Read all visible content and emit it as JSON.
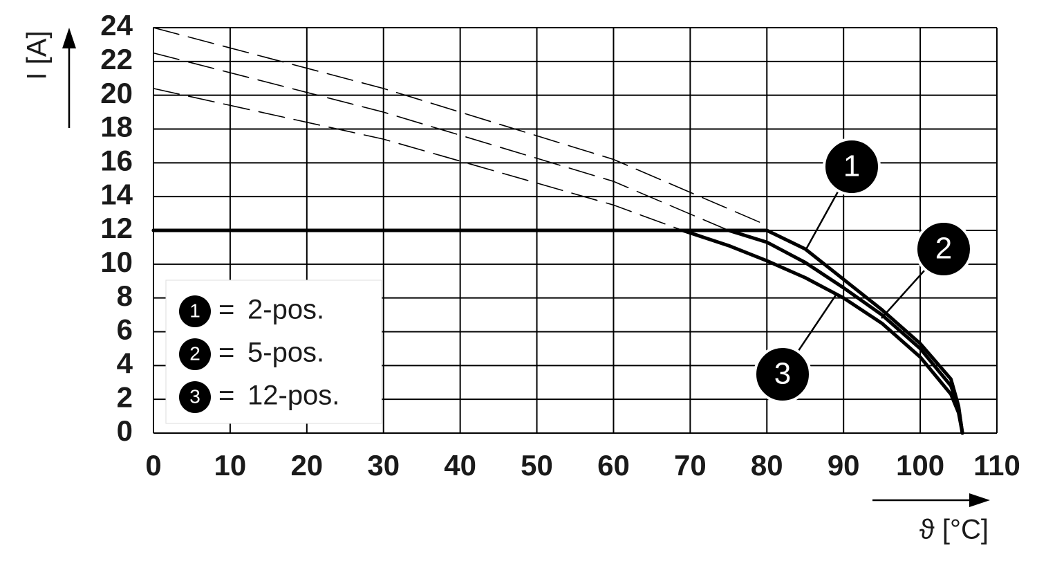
{
  "chart_data": {
    "type": "line",
    "y_label": "I [A]",
    "x_label": "ϑ [°C]",
    "xlim": [
      0,
      110
    ],
    "xticks": [
      0,
      10,
      20,
      30,
      40,
      50,
      60,
      70,
      80,
      90,
      100,
      110
    ],
    "ylim": [
      0,
      24
    ],
    "yticks": [
      0,
      2,
      4,
      6,
      8,
      10,
      12,
      14,
      16,
      18,
      20,
      22,
      24
    ],
    "grid": true,
    "legend_separator": "=",
    "series": [
      {
        "name": "2-pos.",
        "marker": "1",
        "color": "#000000",
        "style": "solid",
        "x": [
          0,
          80,
          85,
          90,
          95,
          100,
          104,
          105,
          105.5
        ],
        "values": [
          12,
          12,
          10.9,
          9.1,
          7.3,
          5.3,
          3.2,
          1.6,
          0
        ]
      },
      {
        "name": "5-pos.",
        "marker": "2",
        "color": "#000000",
        "style": "solid",
        "x": [
          0,
          75,
          80,
          85,
          90,
          95,
          100,
          104,
          105,
          105.5
        ],
        "values": [
          12,
          12,
          11.3,
          10.1,
          8.6,
          7.0,
          5.0,
          2.8,
          1.5,
          0
        ]
      },
      {
        "name": "12-pos.",
        "marker": "3",
        "color": "#000000",
        "style": "solid",
        "x": [
          0,
          69,
          75,
          80,
          85,
          90,
          95,
          100,
          104,
          105,
          105.5
        ],
        "values": [
          12,
          12,
          11.1,
          10.2,
          9.2,
          8.0,
          6.5,
          4.5,
          2.3,
          1.2,
          0
        ]
      },
      {
        "color": "#000000",
        "style": "dashed",
        "x": [
          0,
          30,
          60,
          80
        ],
        "values": [
          24,
          20.4,
          16.2,
          12.3
        ]
      },
      {
        "color": "#000000",
        "style": "dashed",
        "x": [
          0,
          30,
          60,
          75
        ],
        "values": [
          22.5,
          19.0,
          14.9,
          12.0
        ]
      },
      {
        "color": "#000000",
        "style": "dashed",
        "x": [
          0,
          30,
          60,
          69
        ],
        "values": [
          20.4,
          17.4,
          13.5,
          12.0
        ]
      }
    ]
  }
}
